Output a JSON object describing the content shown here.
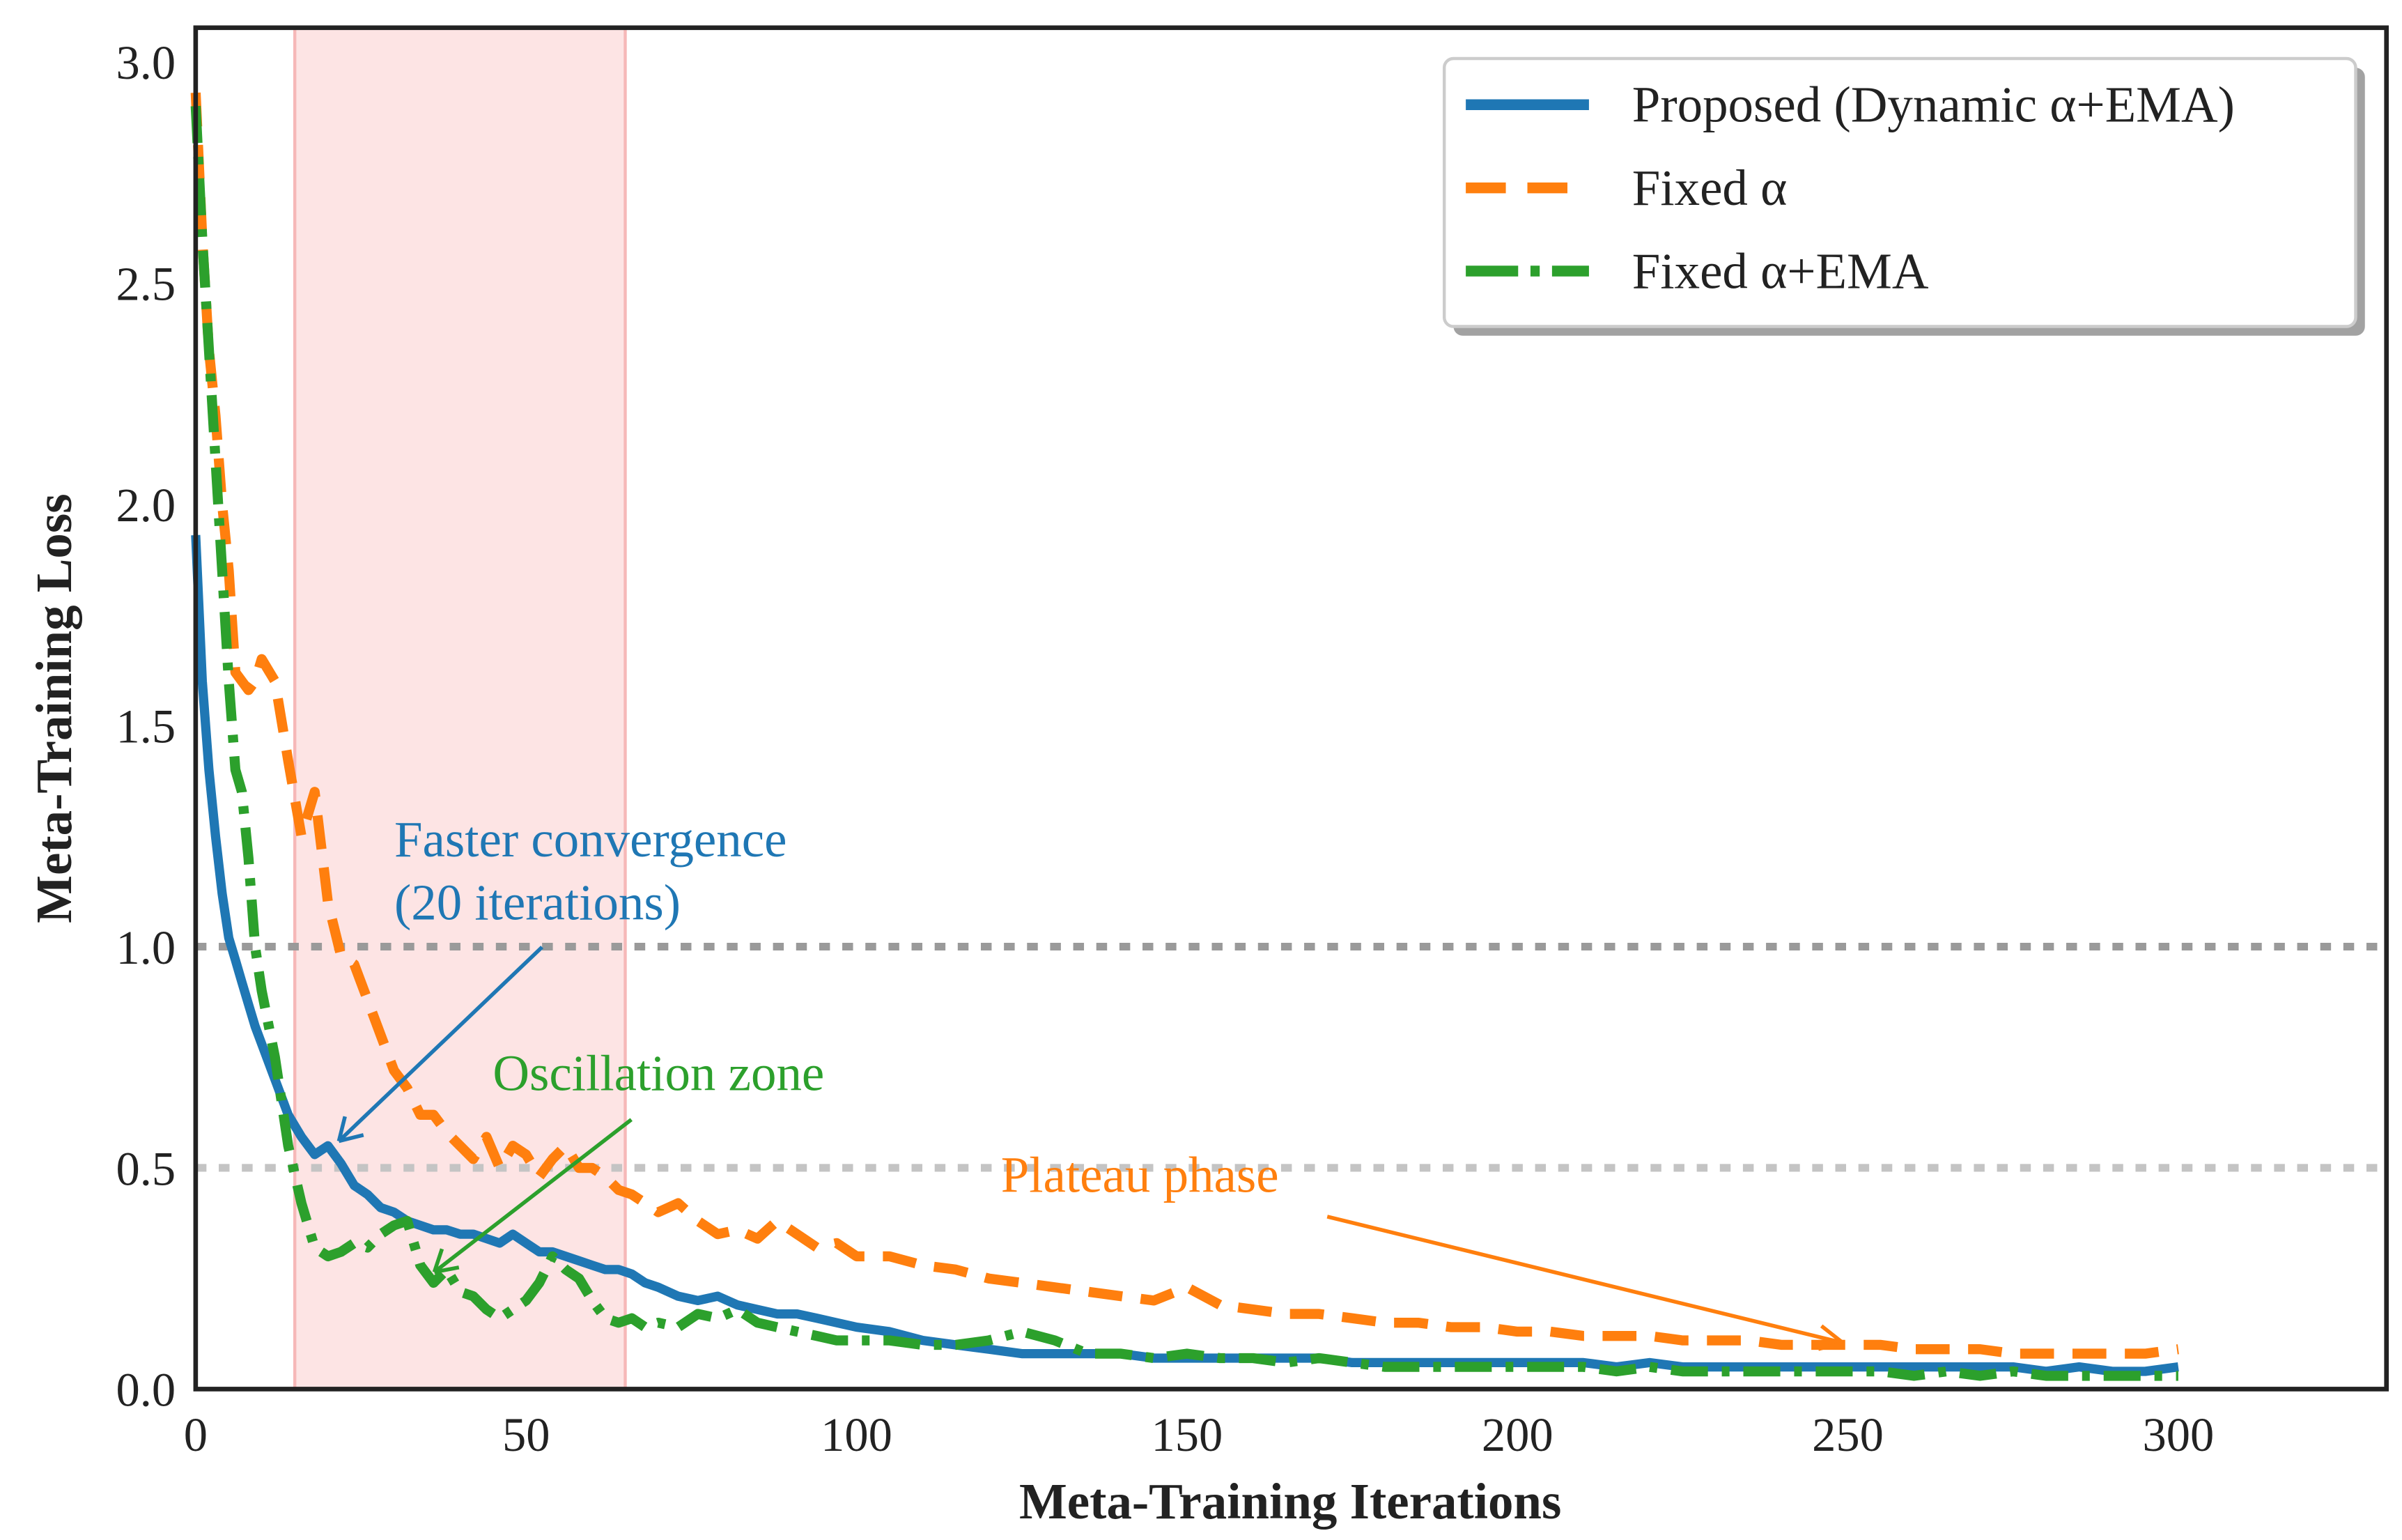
{
  "chart_data": {
    "type": "line",
    "title": "",
    "xlabel": "Meta-Training Iterations",
    "ylabel": "Meta-Training Loss",
    "xlim": [
      0,
      331.5
    ],
    "ylim": [
      0,
      3.077
    ],
    "xticks": [
      0,
      50,
      100,
      150,
      200,
      250,
      300
    ],
    "xtick_labels": [
      "0",
      "50",
      "100",
      "150",
      "200",
      "250",
      "300"
    ],
    "yticks": [
      0,
      0.5,
      1.0,
      1.5,
      2.0,
      2.5,
      3.0
    ],
    "ytick_labels": [
      "0.0",
      "0.5",
      "1.0",
      "1.5",
      "2.0",
      "2.5",
      "3.0"
    ],
    "grid": false,
    "legend_position": "top-right",
    "reference_lines": [
      1.0,
      0.5
    ],
    "shaded_region": {
      "x_start": 15,
      "x_end": 65,
      "color": "#fde4e4"
    },
    "x": [
      0,
      1,
      2,
      3,
      4,
      5,
      6,
      7,
      8,
      9,
      10,
      12,
      14,
      16,
      18,
      20,
      22,
      24,
      26,
      28,
      30,
      32,
      34,
      36,
      38,
      40,
      42,
      44,
      46,
      48,
      50,
      52,
      54,
      56,
      58,
      60,
      62,
      64,
      66,
      68,
      70,
      73,
      76,
      79,
      82,
      85,
      88,
      91,
      94,
      97,
      100,
      105,
      110,
      115,
      120,
      125,
      130,
      135,
      140,
      145,
      150,
      155,
      160,
      165,
      170,
      175,
      180,
      185,
      190,
      195,
      200,
      205,
      210,
      215,
      220,
      225,
      230,
      235,
      240,
      245,
      250,
      255,
      260,
      265,
      270,
      275,
      280,
      285,
      290,
      295,
      300
    ],
    "series": [
      {
        "name": "Proposed (Dynamic α+EMA)",
        "color": "#1f77b4",
        "style": "solid",
        "values": [
          1.93,
          1.6,
          1.4,
          1.25,
          1.12,
          1.02,
          0.97,
          0.92,
          0.87,
          0.82,
          0.78,
          0.7,
          0.62,
          0.57,
          0.53,
          0.55,
          0.51,
          0.46,
          0.44,
          0.41,
          0.4,
          0.38,
          0.37,
          0.36,
          0.36,
          0.35,
          0.35,
          0.34,
          0.33,
          0.35,
          0.33,
          0.31,
          0.31,
          0.3,
          0.29,
          0.28,
          0.27,
          0.27,
          0.26,
          0.24,
          0.23,
          0.21,
          0.2,
          0.21,
          0.19,
          0.18,
          0.17,
          0.17,
          0.16,
          0.15,
          0.14,
          0.13,
          0.11,
          0.1,
          0.09,
          0.08,
          0.08,
          0.08,
          0.08,
          0.07,
          0.07,
          0.07,
          0.07,
          0.07,
          0.07,
          0.06,
          0.06,
          0.06,
          0.06,
          0.06,
          0.06,
          0.06,
          0.06,
          0.05,
          0.06,
          0.05,
          0.05,
          0.05,
          0.05,
          0.05,
          0.05,
          0.05,
          0.05,
          0.05,
          0.05,
          0.05,
          0.04,
          0.05,
          0.04,
          0.04,
          0.05
        ]
      },
      {
        "name": "Fixed α",
        "color": "#ff7f0e",
        "style": "dashed",
        "values": [
          2.93,
          2.6,
          2.35,
          2.2,
          2.0,
          1.85,
          1.62,
          1.6,
          1.58,
          1.6,
          1.65,
          1.6,
          1.42,
          1.25,
          1.35,
          1.1,
          0.98,
          0.96,
          0.88,
          0.8,
          0.72,
          0.68,
          0.62,
          0.62,
          0.58,
          0.55,
          0.52,
          0.57,
          0.5,
          0.55,
          0.53,
          0.48,
          0.52,
          0.55,
          0.5,
          0.5,
          0.48,
          0.45,
          0.44,
          0.42,
          0.4,
          0.42,
          0.38,
          0.35,
          0.36,
          0.34,
          0.38,
          0.35,
          0.32,
          0.33,
          0.3,
          0.3,
          0.28,
          0.27,
          0.25,
          0.24,
          0.23,
          0.22,
          0.21,
          0.2,
          0.23,
          0.19,
          0.18,
          0.17,
          0.17,
          0.16,
          0.15,
          0.15,
          0.14,
          0.14,
          0.13,
          0.13,
          0.12,
          0.12,
          0.12,
          0.11,
          0.11,
          0.11,
          0.1,
          0.1,
          0.1,
          0.1,
          0.09,
          0.09,
          0.09,
          0.08,
          0.08,
          0.08,
          0.08,
          0.08,
          0.09
        ]
      },
      {
        "name": "Fixed α+EMA",
        "color": "#2ca02c",
        "style": "dashdot",
        "values": [
          2.9,
          2.6,
          2.35,
          2.1,
          1.85,
          1.6,
          1.4,
          1.35,
          1.2,
          1.0,
          0.9,
          0.75,
          0.55,
          0.42,
          0.32,
          0.3,
          0.31,
          0.33,
          0.32,
          0.35,
          0.37,
          0.38,
          0.28,
          0.24,
          0.27,
          0.22,
          0.21,
          0.18,
          0.16,
          0.18,
          0.2,
          0.24,
          0.3,
          0.27,
          0.25,
          0.2,
          0.16,
          0.15,
          0.16,
          0.14,
          0.15,
          0.14,
          0.17,
          0.16,
          0.18,
          0.15,
          0.14,
          0.13,
          0.12,
          0.11,
          0.11,
          0.11,
          0.1,
          0.1,
          0.11,
          0.13,
          0.11,
          0.08,
          0.08,
          0.07,
          0.08,
          0.07,
          0.07,
          0.06,
          0.07,
          0.06,
          0.05,
          0.05,
          0.05,
          0.05,
          0.05,
          0.05,
          0.05,
          0.04,
          0.05,
          0.04,
          0.04,
          0.04,
          0.04,
          0.04,
          0.04,
          0.04,
          0.03,
          0.04,
          0.03,
          0.04,
          0.03,
          0.03,
          0.03,
          0.03,
          0.03
        ]
      }
    ],
    "annotations": [
      {
        "text_line1": "Faster convergence",
        "text_line2": "(20 iterations)",
        "color": "#1f77b4",
        "arrow_to": [
          21,
          0.56
        ]
      },
      {
        "text_line1": "Oscillation zone",
        "color": "#2ca02c",
        "arrow_to": [
          36,
          0.27
        ]
      },
      {
        "text_line1": "Plateau phase",
        "color": "#ff7f0e",
        "arrow_to": [
          250,
          0.1
        ]
      }
    ]
  }
}
